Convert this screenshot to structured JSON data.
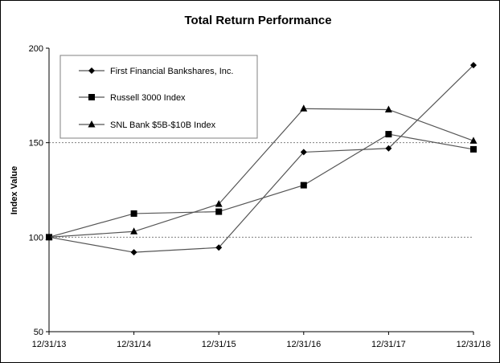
{
  "chart_data": {
    "type": "line",
    "title": "Total Return Performance",
    "xlabel": "",
    "ylabel": "Index Value",
    "categories": [
      "12/31/13",
      "12/31/14",
      "12/31/15",
      "12/31/16",
      "12/31/17",
      "12/31/18"
    ],
    "ylim": [
      50,
      200
    ],
    "yticks": [
      50,
      100,
      150,
      200
    ],
    "gridlines": [
      100,
      150
    ],
    "legend_position": "top-left",
    "series": [
      {
        "name": "First Financial Bankshares, Inc.",
        "marker": "diamond",
        "values": [
          100,
          92,
          94.5,
          145,
          147,
          191
        ]
      },
      {
        "name": "Russell 3000 Index",
        "marker": "square",
        "values": [
          100,
          112.5,
          113.5,
          127.5,
          154.5,
          146.5
        ]
      },
      {
        "name": "SNL Bank $5B-$10B Index",
        "marker": "triangle",
        "values": [
          100,
          103,
          117.5,
          168,
          167.5,
          151
        ]
      }
    ],
    "colors": {
      "line": "#555555",
      "marker": "#000000",
      "grid": "#808080"
    }
  }
}
